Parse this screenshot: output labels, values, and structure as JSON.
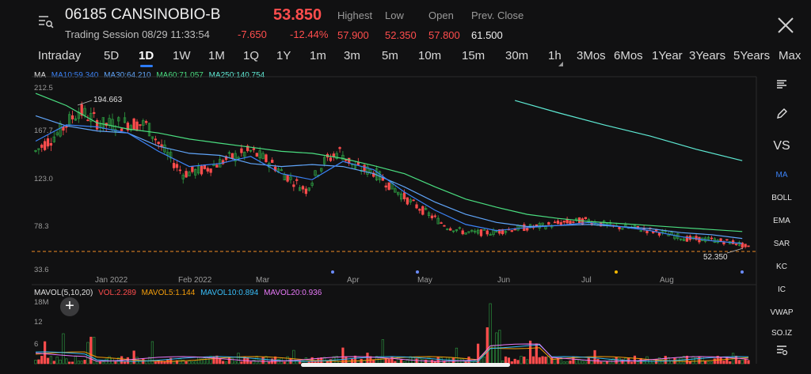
{
  "header": {
    "title": "06185 CANSINOBIO-B",
    "price": "53.850",
    "session": "Trading Session 08/29 11:33:54",
    "change": "-7.650",
    "change_pct": "-12.44%",
    "stats": {
      "highest_label": "Highest",
      "highest": "57.900",
      "low_label": "Low",
      "low": "52.350",
      "open_label": "Open",
      "open": "57.800",
      "prev_close_label": "Prev. Close",
      "prev_close": "61.500"
    }
  },
  "tabs": [
    "Intraday",
    "5D",
    "1D",
    "1W",
    "1M",
    "1Q",
    "1Y",
    "1m",
    "3m",
    "5m",
    "10m",
    "15m",
    "30m",
    "1h",
    "3Mos",
    "6Mos",
    "1Year",
    "3Years",
    "5Years",
    "Max"
  ],
  "active_tab": "1D",
  "ma_legend": {
    "ma": "MA",
    "ma10": "MA10:59.340",
    "ma30": "MA30:64.210",
    "ma60": "MA60:71.057",
    "ma250": "MA250:140.754"
  },
  "vol_legend": {
    "title": "MAVOL(5,10,20)",
    "vol": "VOL:2.289",
    "mavol5": "MAVOL5:1.144",
    "mavol10": "MAVOL10:0.894",
    "mavol20": "MAVOL20:0.936"
  },
  "side_items": [
    "MA",
    "BOLL",
    "EMA",
    "SAR",
    "KC",
    "IC",
    "VWAP",
    "SO.IZ"
  ],
  "side_icons": [
    "lines-icon",
    "pencil-icon",
    "vs-icon"
  ],
  "side_vs": "VS",
  "plus": "+",
  "colors": {
    "up": "#2ea043",
    "down": "#ff4d4d",
    "ma10": "#3b82f6",
    "ma30": "#60a5fa",
    "ma60": "#4ade80",
    "ma250": "#5eead4",
    "mavol5": "#f59e0b",
    "mavol10": "#38bdf8",
    "mavol20": "#e879f9"
  },
  "chart_data": {
    "type": "candlestick",
    "y_ticks": [
      "212.5",
      "167.7",
      "123.0",
      "78.3",
      "33.6"
    ],
    "x_ticks": [
      "Jan 2022",
      "Feb 2022",
      "Mar",
      "Apr",
      "May",
      "Jun",
      "Jul",
      "Aug"
    ],
    "high_marker": "194.663",
    "low_marker": "52.350",
    "vol_y_ticks": [
      "18M",
      "12",
      "6"
    ],
    "ylim": [
      33.6,
      212.5
    ],
    "ma250": [
      [
        156,
        200
      ],
      [
        170,
        188
      ],
      [
        185,
        176
      ],
      [
        200,
        165
      ],
      [
        215,
        152
      ],
      [
        230,
        140.754
      ]
    ],
    "ma60": [
      [
        0,
        207
      ],
      [
        10,
        195
      ],
      [
        20,
        178
      ],
      [
        30,
        172
      ],
      [
        40,
        168
      ],
      [
        50,
        162
      ],
      [
        60,
        158
      ],
      [
        70,
        154
      ],
      [
        80,
        150
      ],
      [
        90,
        148
      ],
      [
        100,
        143
      ],
      [
        110,
        136
      ],
      [
        120,
        128
      ],
      [
        130,
        115
      ],
      [
        140,
        103
      ],
      [
        150,
        95
      ],
      [
        160,
        88
      ],
      [
        170,
        84
      ],
      [
        180,
        81
      ],
      [
        190,
        79
      ],
      [
        200,
        77
      ],
      [
        210,
        75
      ],
      [
        220,
        73
      ],
      [
        230,
        71.057
      ]
    ],
    "ma30": [
      [
        0,
        185
      ],
      [
        10,
        175
      ],
      [
        20,
        170
      ],
      [
        30,
        168
      ],
      [
        40,
        155
      ],
      [
        50,
        148
      ],
      [
        60,
        146
      ],
      [
        70,
        138
      ],
      [
        80,
        135
      ],
      [
        90,
        137
      ],
      [
        100,
        135
      ],
      [
        110,
        128
      ],
      [
        120,
        115
      ],
      [
        130,
        100
      ],
      [
        140,
        88
      ],
      [
        150,
        80
      ],
      [
        160,
        76
      ],
      [
        170,
        77
      ],
      [
        180,
        78
      ],
      [
        190,
        76
      ],
      [
        200,
        74
      ],
      [
        210,
        70
      ],
      [
        220,
        68
      ],
      [
        230,
        64.21
      ]
    ],
    "ma10": [
      [
        0,
        160
      ],
      [
        10,
        176
      ],
      [
        20,
        174
      ],
      [
        30,
        168
      ],
      [
        40,
        150
      ],
      [
        50,
        135
      ],
      [
        60,
        138
      ],
      [
        70,
        145
      ],
      [
        80,
        128
      ],
      [
        90,
        122
      ],
      [
        100,
        140
      ],
      [
        110,
        132
      ],
      [
        120,
        110
      ],
      [
        130,
        92
      ],
      [
        140,
        78
      ],
      [
        150,
        72
      ],
      [
        160,
        75
      ],
      [
        170,
        77
      ],
      [
        180,
        80
      ],
      [
        190,
        76
      ],
      [
        200,
        72
      ],
      [
        210,
        66
      ],
      [
        220,
        62
      ],
      [
        230,
        59.34
      ]
    ],
    "close_path": [
      [
        0,
        150
      ],
      [
        8,
        170
      ],
      [
        14,
        190
      ],
      [
        22,
        176
      ],
      [
        30,
        178
      ],
      [
        36,
        176
      ],
      [
        42,
        150
      ],
      [
        48,
        128
      ],
      [
        55,
        132
      ],
      [
        62,
        142
      ],
      [
        70,
        150
      ],
      [
        76,
        140
      ],
      [
        82,
        125
      ],
      [
        88,
        112
      ],
      [
        94,
        140
      ],
      [
        99,
        150
      ],
      [
        104,
        134
      ],
      [
        110,
        130
      ],
      [
        116,
        115
      ],
      [
        122,
        100
      ],
      [
        128,
        88
      ],
      [
        134,
        76
      ],
      [
        140,
        70
      ],
      [
        148,
        70
      ],
      [
        156,
        74
      ],
      [
        164,
        76
      ],
      [
        172,
        80
      ],
      [
        180,
        82
      ],
      [
        188,
        76
      ],
      [
        196,
        74
      ],
      [
        204,
        70
      ],
      [
        212,
        64
      ],
      [
        220,
        63
      ],
      [
        228,
        60
      ],
      [
        232,
        55
      ]
    ]
  }
}
